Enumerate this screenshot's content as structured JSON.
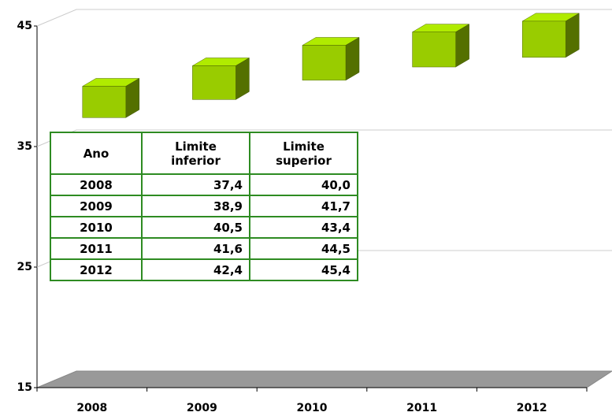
{
  "chart_data": {
    "type": "range_bar",
    "categories": [
      "2008",
      "2009",
      "2010",
      "2011",
      "2012"
    ],
    "series": [
      {
        "name": "Limite inferior",
        "values": [
          37.4,
          38.9,
          40.5,
          41.6,
          42.4
        ],
        "value_labels": [
          "37,4",
          "38,9",
          "40,5",
          "41,6",
          "42,4"
        ]
      },
      {
        "name": "Limite superior",
        "values": [
          40.0,
          41.7,
          43.4,
          44.5,
          45.4
        ],
        "value_labels": [
          "40,0",
          "41,7",
          "43,4",
          "44,5",
          "45,4"
        ]
      }
    ],
    "color": "#99cc00",
    "ylim": [
      15,
      45
    ],
    "yticks": [
      15,
      25,
      35,
      45
    ],
    "grid": true,
    "table_header": "Ano"
  }
}
